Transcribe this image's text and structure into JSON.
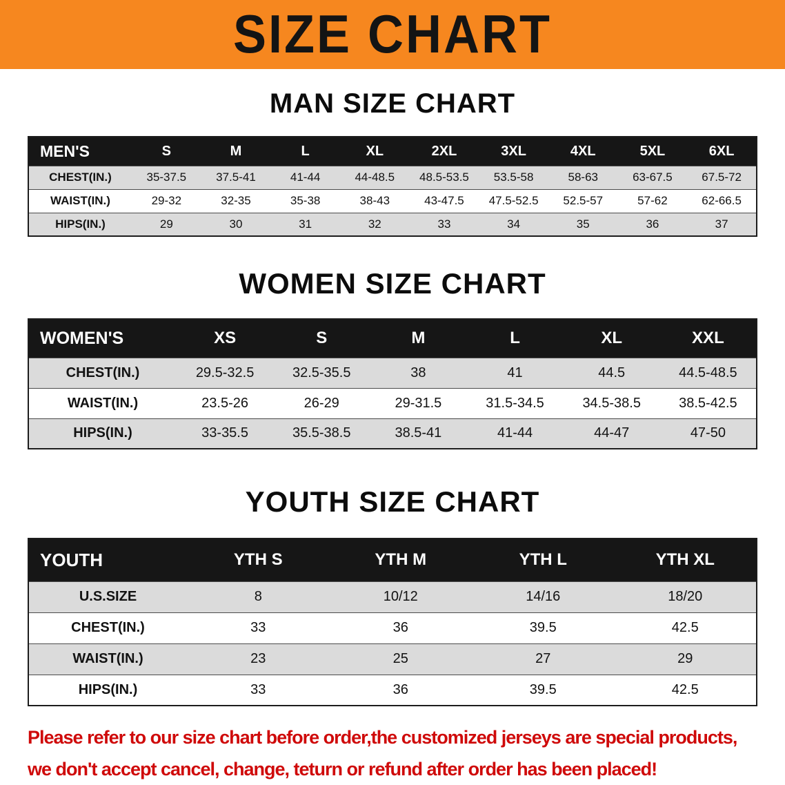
{
  "banner": {
    "title": "SIZE CHART",
    "bg_color": "#f6871f",
    "text_color": "#141414"
  },
  "colors": {
    "table_header_bg": "#161616",
    "row_alt_gray": "#dbdbdb",
    "disclaimer_red": "#cf0a0a"
  },
  "sections": [
    {
      "id": "men",
      "heading": "MAN SIZE CHART",
      "table": {
        "header": [
          "MEN'S",
          "S",
          "M",
          "L",
          "XL",
          "2XL",
          "3XL",
          "4XL",
          "5XL",
          "6XL"
        ],
        "rows": [
          {
            "label": "CHEST(IN.)",
            "values": [
              "35-37.5",
              "37.5-41",
              "41-44",
              "44-48.5",
              "48.5-53.5",
              "53.5-58",
              "58-63",
              "63-67.5",
              "67.5-72"
            ]
          },
          {
            "label": "WAIST(IN.)",
            "values": [
              "29-32",
              "32-35",
              "35-38",
              "38-43",
              "43-47.5",
              "47.5-52.5",
              "52.5-57",
              "57-62",
              "62-66.5"
            ]
          },
          {
            "label": "HIPS(IN.)",
            "values": [
              "29",
              "30",
              "31",
              "32",
              "33",
              "34",
              "35",
              "36",
              "37"
            ]
          }
        ]
      }
    },
    {
      "id": "women",
      "heading": "WOMEN SIZE CHART",
      "table": {
        "header": [
          "WOMEN'S",
          "XS",
          "S",
          "M",
          "L",
          "XL",
          "XXL"
        ],
        "rows": [
          {
            "label": "CHEST(IN.)",
            "values": [
              "29.5-32.5",
              "32.5-35.5",
              "38",
              "41",
              "44.5",
              "44.5-48.5"
            ]
          },
          {
            "label": "WAIST(IN.)",
            "values": [
              "23.5-26",
              "26-29",
              "29-31.5",
              "31.5-34.5",
              "34.5-38.5",
              "38.5-42.5"
            ]
          },
          {
            "label": "HIPS(IN.)",
            "values": [
              "33-35.5",
              "35.5-38.5",
              "38.5-41",
              "41-44",
              "44-47",
              "47-50"
            ]
          }
        ]
      }
    },
    {
      "id": "youth",
      "heading": "YOUTH SIZE CHART",
      "table": {
        "header": [
          "YOUTH",
          "YTH S",
          "YTH M",
          "YTH L",
          "YTH XL"
        ],
        "rows": [
          {
            "label": "U.S.SIZE",
            "values": [
              "8",
              "10/12",
              "14/16",
              "18/20"
            ]
          },
          {
            "label": "CHEST(IN.)",
            "values": [
              "33",
              "36",
              "39.5",
              "42.5"
            ]
          },
          {
            "label": "WAIST(IN.)",
            "values": [
              "23",
              "25",
              "27",
              "29"
            ]
          },
          {
            "label": "HIPS(IN.)",
            "values": [
              "33",
              "36",
              "39.5",
              "42.5"
            ]
          }
        ]
      }
    }
  ],
  "disclaimer": {
    "lines": [
      "Please refer to our size chart before order,the customized jerseys are special products,",
      "we don't accept cancel, change, teturn or refund after order has been placed!"
    ]
  }
}
